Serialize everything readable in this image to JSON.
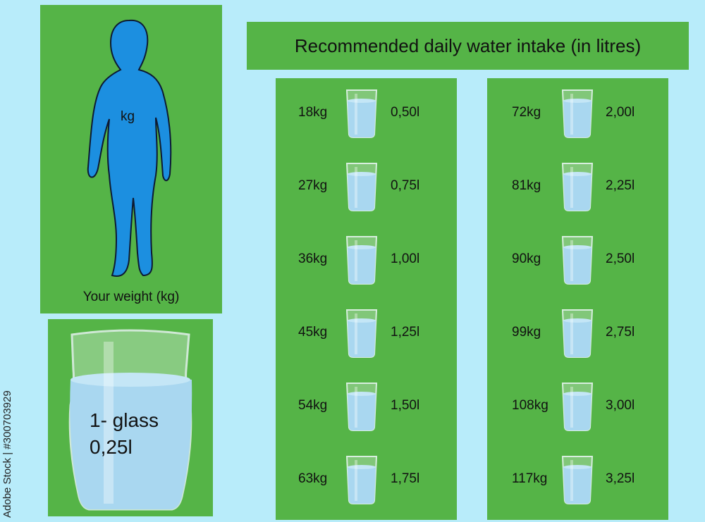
{
  "title": "Recommended daily water intake (in litres)",
  "person": {
    "kg_label": "kg",
    "caption": "Your weight (kg)"
  },
  "glass": {
    "line1": "1- glass",
    "line2": "0,25l"
  },
  "table_left": [
    {
      "weight": "18kg",
      "litres": "0,50l"
    },
    {
      "weight": "27kg",
      "litres": "0,75l"
    },
    {
      "weight": "36kg",
      "litres": "1,00l"
    },
    {
      "weight": "45kg",
      "litres": "1,25l"
    },
    {
      "weight": "54kg",
      "litres": "1,50l"
    },
    {
      "weight": "63kg",
      "litres": "1,75l"
    }
  ],
  "table_right": [
    {
      "weight": "72kg",
      "litres": "2,00l"
    },
    {
      "weight": "81kg",
      "litres": "2,25l"
    },
    {
      "weight": "90kg",
      "litres": "2,50l"
    },
    {
      "weight": "99kg",
      "litres": "2,75l"
    },
    {
      "weight": "108kg",
      "litres": "3,00l"
    },
    {
      "weight": "117kg",
      "litres": "3,25l"
    }
  ],
  "stock_id": "Adobe Stock | #300703929",
  "colors": {
    "background": "#b8ecfa",
    "panel": "#55b447",
    "figure": "#1c8fe0",
    "water": "#a9d7f0"
  }
}
